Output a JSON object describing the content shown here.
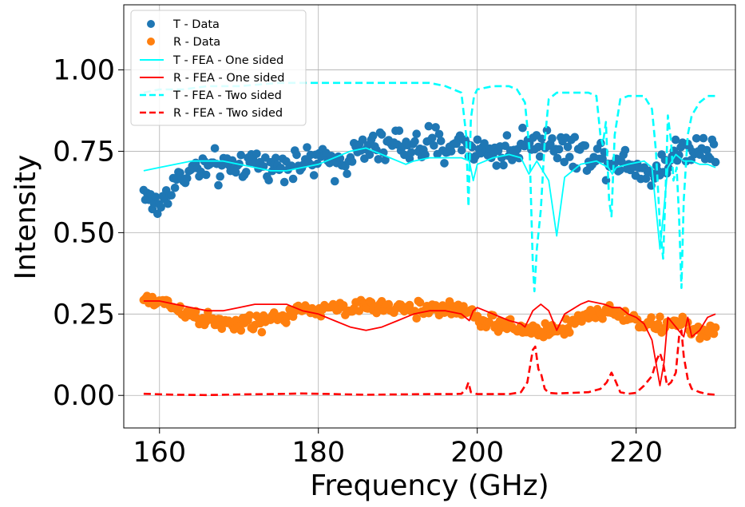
{
  "chart_data": {
    "type": "scatter+line",
    "xlabel": "Frequency (GHz)",
    "ylabel": "Intensity",
    "xlim": [
      155.5,
      232.5
    ],
    "ylim": [
      -0.1,
      1.2
    ],
    "xticks": [
      160,
      180,
      200,
      220
    ],
    "xtick_labels": [
      "160",
      "180",
      "200",
      "220"
    ],
    "yticks": [
      0.0,
      0.25,
      0.5,
      0.75,
      1.0
    ],
    "ytick_labels": [
      "0.00",
      "0.25",
      "0.50",
      "0.75",
      "1.00"
    ],
    "grid": true,
    "legend_position": "top-left",
    "series": [
      {
        "name": "T - Data",
        "kind": "scatter",
        "color": "#1f77b4",
        "anchors": [
          [
            158,
            0.63
          ],
          [
            159,
            0.59
          ],
          [
            160,
            0.58
          ],
          [
            162,
            0.66
          ],
          [
            164,
            0.69
          ],
          [
            166,
            0.7
          ],
          [
            168,
            0.69
          ],
          [
            170,
            0.71
          ],
          [
            172,
            0.72
          ],
          [
            174,
            0.7
          ],
          [
            176,
            0.72
          ],
          [
            178,
            0.71
          ],
          [
            180,
            0.72
          ],
          [
            182,
            0.72
          ],
          [
            184,
            0.73
          ],
          [
            186,
            0.76
          ],
          [
            188,
            0.76
          ],
          [
            190,
            0.78
          ],
          [
            192,
            0.76
          ],
          [
            194,
            0.77
          ],
          [
            196,
            0.76
          ],
          [
            198,
            0.78
          ],
          [
            199,
            0.77
          ],
          [
            200,
            0.75
          ],
          [
            202,
            0.75
          ],
          [
            204,
            0.75
          ],
          [
            205,
            0.74
          ],
          [
            206,
            0.79
          ],
          [
            208,
            0.78
          ],
          [
            210,
            0.77
          ],
          [
            212,
            0.75
          ],
          [
            214,
            0.74
          ],
          [
            216,
            0.73
          ],
          [
            218,
            0.72
          ],
          [
            220,
            0.71
          ],
          [
            222,
            0.68
          ],
          [
            224,
            0.72
          ],
          [
            226,
            0.76
          ],
          [
            228,
            0.76
          ],
          [
            230,
            0.77
          ]
        ],
        "spread": 0.035
      },
      {
        "name": "R - Data",
        "kind": "scatter",
        "color": "#ff7f0e",
        "anchors": [
          [
            158,
            0.29
          ],
          [
            160,
            0.29
          ],
          [
            162,
            0.27
          ],
          [
            164,
            0.25
          ],
          [
            166,
            0.23
          ],
          [
            168,
            0.22
          ],
          [
            170,
            0.22
          ],
          [
            172,
            0.22
          ],
          [
            174,
            0.23
          ],
          [
            176,
            0.25
          ],
          [
            178,
            0.26
          ],
          [
            180,
            0.26
          ],
          [
            182,
            0.27
          ],
          [
            184,
            0.27
          ],
          [
            186,
            0.27
          ],
          [
            188,
            0.27
          ],
          [
            190,
            0.27
          ],
          [
            192,
            0.26
          ],
          [
            194,
            0.27
          ],
          [
            196,
            0.27
          ],
          [
            198,
            0.26
          ],
          [
            200,
            0.24
          ],
          [
            202,
            0.22
          ],
          [
            204,
            0.21
          ],
          [
            206,
            0.2
          ],
          [
            208,
            0.2
          ],
          [
            210,
            0.2
          ],
          [
            212,
            0.22
          ],
          [
            214,
            0.25
          ],
          [
            216,
            0.26
          ],
          [
            218,
            0.25
          ],
          [
            220,
            0.23
          ],
          [
            222,
            0.21
          ],
          [
            224,
            0.22
          ],
          [
            226,
            0.22
          ],
          [
            228,
            0.19
          ],
          [
            230,
            0.2
          ]
        ],
        "spread": 0.018
      },
      {
        "name": "T - FEA - One sided",
        "kind": "line",
        "style": "solid",
        "color": "#00ffff",
        "points": [
          [
            158,
            0.69
          ],
          [
            160,
            0.7
          ],
          [
            162,
            0.71
          ],
          [
            164,
            0.72
          ],
          [
            166,
            0.72
          ],
          [
            168,
            0.72
          ],
          [
            170,
            0.71
          ],
          [
            172,
            0.7
          ],
          [
            174,
            0.69
          ],
          [
            176,
            0.69
          ],
          [
            178,
            0.7
          ],
          [
            180,
            0.71
          ],
          [
            182,
            0.73
          ],
          [
            184,
            0.75
          ],
          [
            186,
            0.76
          ],
          [
            188,
            0.74
          ],
          [
            190,
            0.72
          ],
          [
            191,
            0.71
          ],
          [
            192,
            0.72
          ],
          [
            194,
            0.73
          ],
          [
            196,
            0.73
          ],
          [
            198,
            0.73
          ],
          [
            199,
            0.72
          ],
          [
            199.5,
            0.66
          ],
          [
            200,
            0.71
          ],
          [
            202,
            0.73
          ],
          [
            204,
            0.74
          ],
          [
            205.5,
            0.73
          ],
          [
            206.5,
            0.68
          ],
          [
            207.5,
            0.72
          ],
          [
            209,
            0.66
          ],
          [
            210,
            0.49
          ],
          [
            211,
            0.67
          ],
          [
            213,
            0.71
          ],
          [
            215,
            0.72
          ],
          [
            216.5,
            0.7
          ],
          [
            217,
            0.68
          ],
          [
            217.5,
            0.7
          ],
          [
            219,
            0.71
          ],
          [
            221,
            0.72
          ],
          [
            222,
            0.7
          ],
          [
            223,
            0.45
          ],
          [
            224,
            0.7
          ],
          [
            225,
            0.74
          ],
          [
            226,
            0.72
          ],
          [
            227,
            0.72
          ],
          [
            228,
            0.71
          ],
          [
            229,
            0.71
          ],
          [
            230,
            0.7
          ]
        ]
      },
      {
        "name": "R - FEA - One sided",
        "kind": "line",
        "style": "solid",
        "color": "#ff0000",
        "points": [
          [
            158,
            0.29
          ],
          [
            160,
            0.29
          ],
          [
            162,
            0.28
          ],
          [
            164,
            0.27
          ],
          [
            166,
            0.26
          ],
          [
            168,
            0.26
          ],
          [
            170,
            0.27
          ],
          [
            172,
            0.28
          ],
          [
            174,
            0.28
          ],
          [
            176,
            0.28
          ],
          [
            178,
            0.26
          ],
          [
            180,
            0.25
          ],
          [
            182,
            0.23
          ],
          [
            184,
            0.21
          ],
          [
            186,
            0.2
          ],
          [
            188,
            0.21
          ],
          [
            190,
            0.23
          ],
          [
            192,
            0.25
          ],
          [
            194,
            0.26
          ],
          [
            196,
            0.26
          ],
          [
            198,
            0.25
          ],
          [
            199,
            0.23
          ],
          [
            199.5,
            0.26
          ],
          [
            200,
            0.27
          ],
          [
            202,
            0.25
          ],
          [
            204,
            0.23
          ],
          [
            205.5,
            0.22
          ],
          [
            206,
            0.21
          ],
          [
            207,
            0.26
          ],
          [
            208,
            0.28
          ],
          [
            209,
            0.26
          ],
          [
            210,
            0.2
          ],
          [
            211,
            0.25
          ],
          [
            213,
            0.28
          ],
          [
            214,
            0.29
          ],
          [
            216,
            0.28
          ],
          [
            217,
            0.27
          ],
          [
            218,
            0.27
          ],
          [
            219,
            0.25
          ],
          [
            220,
            0.24
          ],
          [
            221,
            0.22
          ],
          [
            222,
            0.17
          ],
          [
            223,
            0.03
          ],
          [
            223.5,
            0.1
          ],
          [
            224,
            0.24
          ],
          [
            225,
            0.21
          ],
          [
            226,
            0.18
          ],
          [
            226.5,
            0.24
          ],
          [
            227,
            0.18
          ],
          [
            228,
            0.2
          ],
          [
            229,
            0.24
          ],
          [
            230,
            0.25
          ]
        ]
      },
      {
        "name": "T - FEA - Two sided",
        "kind": "line",
        "style": "dashed",
        "color": "#00ffff",
        "points": [
          [
            158,
            0.93
          ],
          [
            160,
            0.94
          ],
          [
            163,
            0.94
          ],
          [
            166,
            0.95
          ],
          [
            170,
            0.95
          ],
          [
            175,
            0.96
          ],
          [
            180,
            0.96
          ],
          [
            185,
            0.96
          ],
          [
            190,
            0.96
          ],
          [
            194,
            0.96
          ],
          [
            196,
            0.95
          ],
          [
            197,
            0.94
          ],
          [
            198,
            0.93
          ],
          [
            198.6,
            0.8
          ],
          [
            198.9,
            0.58
          ],
          [
            199.2,
            0.85
          ],
          [
            199.6,
            0.92
          ],
          [
            200,
            0.94
          ],
          [
            202,
            0.95
          ],
          [
            204,
            0.95
          ],
          [
            205,
            0.94
          ],
          [
            206,
            0.9
          ],
          [
            206.6,
            0.75
          ],
          [
            207,
            0.4
          ],
          [
            207.2,
            0.32
          ],
          [
            207.5,
            0.45
          ],
          [
            208,
            0.57
          ],
          [
            208.5,
            0.78
          ],
          [
            209,
            0.91
          ],
          [
            210,
            0.93
          ],
          [
            212,
            0.93
          ],
          [
            214,
            0.93
          ],
          [
            215,
            0.92
          ],
          [
            215.5,
            0.8
          ],
          [
            215.8,
            0.77
          ],
          [
            216.2,
            0.84
          ],
          [
            216.6,
            0.6
          ],
          [
            216.9,
            0.55
          ],
          [
            217.3,
            0.8
          ],
          [
            218,
            0.91
          ],
          [
            219,
            0.92
          ],
          [
            221,
            0.92
          ],
          [
            222,
            0.88
          ],
          [
            222.5,
            0.75
          ],
          [
            223,
            0.52
          ],
          [
            223.4,
            0.42
          ],
          [
            223.8,
            0.7
          ],
          [
            224,
            0.86
          ],
          [
            224.4,
            0.78
          ],
          [
            224.7,
            0.66
          ],
          [
            225.1,
            0.7
          ],
          [
            225.4,
            0.55
          ],
          [
            225.7,
            0.33
          ],
          [
            226,
            0.6
          ],
          [
            226.5,
            0.8
          ],
          [
            227,
            0.86
          ],
          [
            228,
            0.9
          ],
          [
            229,
            0.92
          ],
          [
            230,
            0.92
          ]
        ]
      },
      {
        "name": "R - FEA - Two sided",
        "kind": "line",
        "style": "dashed",
        "color": "#ff0000",
        "points": [
          [
            158,
            0.005
          ],
          [
            162,
            0.002
          ],
          [
            166,
            0.001
          ],
          [
            170,
            0.003
          ],
          [
            174,
            0.004
          ],
          [
            178,
            0.006
          ],
          [
            182,
            0.004
          ],
          [
            186,
            0.002
          ],
          [
            190,
            0.003
          ],
          [
            194,
            0.004
          ],
          [
            197,
            0.004
          ],
          [
            198,
            0.005
          ],
          [
            198.6,
            0.02
          ],
          [
            198.9,
            0.04
          ],
          [
            199.2,
            0.01
          ],
          [
            200,
            0.004
          ],
          [
            204,
            0.004
          ],
          [
            205.5,
            0.01
          ],
          [
            206.3,
            0.04
          ],
          [
            207,
            0.14
          ],
          [
            207.3,
            0.15
          ],
          [
            207.7,
            0.08
          ],
          [
            208,
            0.07
          ],
          [
            208.5,
            0.02
          ],
          [
            209,
            0.008
          ],
          [
            210,
            0.006
          ],
          [
            212,
            0.008
          ],
          [
            214,
            0.01
          ],
          [
            215.5,
            0.02
          ],
          [
            216.3,
            0.04
          ],
          [
            216.9,
            0.07
          ],
          [
            217.3,
            0.05
          ],
          [
            218,
            0.01
          ],
          [
            219,
            0.005
          ],
          [
            220,
            0.008
          ],
          [
            221,
            0.03
          ],
          [
            222,
            0.06
          ],
          [
            222.6,
            0.11
          ],
          [
            223,
            0.13
          ],
          [
            223.4,
            0.1
          ],
          [
            223.9,
            0.03
          ],
          [
            224.4,
            0.04
          ],
          [
            225,
            0.07
          ],
          [
            225.4,
            0.18
          ],
          [
            225.7,
            0.2
          ],
          [
            226,
            0.12
          ],
          [
            226.5,
            0.05
          ],
          [
            227,
            0.02
          ],
          [
            228,
            0.01
          ],
          [
            229,
            0.004
          ],
          [
            230,
            0.002
          ]
        ]
      }
    ]
  }
}
